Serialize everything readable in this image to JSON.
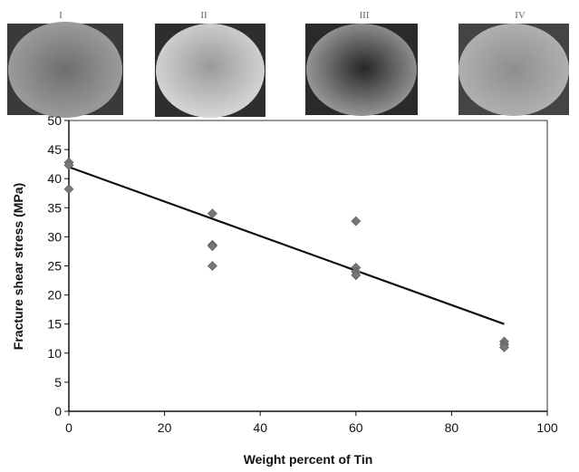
{
  "photos": [
    {
      "label": "I"
    },
    {
      "label": "II"
    },
    {
      "label": "III"
    },
    {
      "label": "IV"
    }
  ],
  "chart_data": {
    "type": "scatter",
    "title": "",
    "xlabel": "Weight percent of Tin",
    "ylabel": "Fracture shear stress (MPa)",
    "xlim": [
      0,
      100
    ],
    "ylim": [
      0,
      50
    ],
    "xticks": [
      0,
      20,
      40,
      60,
      80,
      100
    ],
    "yticks": [
      0,
      5,
      10,
      15,
      20,
      25,
      30,
      35,
      40,
      45,
      50
    ],
    "grid": false,
    "legend": "none",
    "series": [
      {
        "marker": "diamond",
        "color": "#777777",
        "points": [
          [
            0,
            42.8
          ],
          [
            0,
            42.3
          ],
          [
            0,
            38.2
          ],
          [
            30,
            34.0
          ],
          [
            30,
            28.6
          ],
          [
            30,
            28.4
          ],
          [
            30,
            25.0
          ],
          [
            60,
            32.7
          ],
          [
            60,
            24.7
          ],
          [
            60,
            24.0
          ],
          [
            60,
            23.4
          ],
          [
            91,
            12.0
          ],
          [
            91,
            11.5
          ],
          [
            91,
            11.0
          ]
        ]
      }
    ],
    "trendline": {
      "type": "linear",
      "x": [
        0,
        91
      ],
      "y": [
        42.0,
        15.0
      ],
      "color": "#111111"
    }
  }
}
